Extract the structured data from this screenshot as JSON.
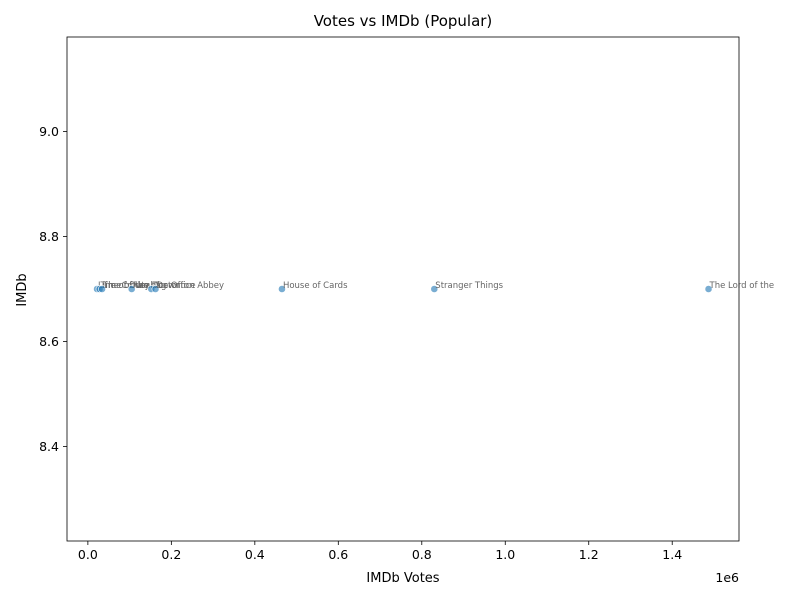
{
  "chart_data": {
    "type": "scatter",
    "title": "Votes vs IMDb (Popular)",
    "xlabel": "IMDb Votes",
    "ylabel": "IMDb",
    "x_offset_label": "1e6",
    "xlim": [
      -50000,
      1560000
    ],
    "ylim": [
      8.22,
      9.18
    ],
    "x_ticks": [
      0,
      200000,
      400000,
      600000,
      800000,
      1000000,
      1200000,
      1400000
    ],
    "x_tick_labels": [
      "0.0",
      "0.2",
      "0.4",
      "0.6",
      "0.8",
      "1.0",
      "1.2",
      "1.4"
    ],
    "y_ticks": [
      8.4,
      8.6,
      8.8,
      9.0
    ],
    "y_tick_labels": [
      "8.4",
      "8.6",
      "8.8",
      "9.0"
    ],
    "grid": false,
    "point_color": "#1f77b4",
    "points": [
      {
        "x": 22000,
        "y": 8.7,
        "label": "Line of Duty"
      },
      {
        "x": 28000,
        "y": 8.7,
        "label": "Time of the Doctor"
      },
      {
        "x": 34000,
        "y": 8.7,
        "label": "The Crown"
      },
      {
        "x": 105000,
        "y": 8.7,
        "label": "Fleabag"
      },
      {
        "x": 152000,
        "y": 8.7,
        "label": "The Office"
      },
      {
        "x": 162000,
        "y": 8.7,
        "label": "Downton Abbey"
      },
      {
        "x": 465000,
        "y": 8.7,
        "label": "House of Cards"
      },
      {
        "x": 830000,
        "y": 8.7,
        "label": "Stranger Things"
      },
      {
        "x": 1487000,
        "y": 8.7,
        "label": "The Lord of the"
      }
    ]
  }
}
